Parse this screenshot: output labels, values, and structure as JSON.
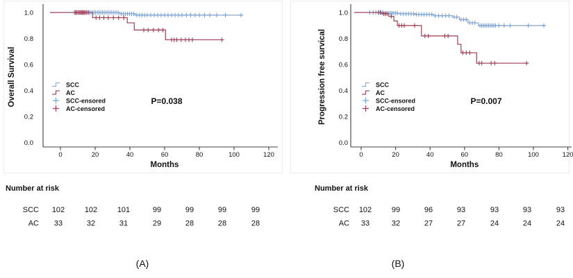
{
  "figure_captions": {
    "a": "(A)",
    "b": "(B)"
  },
  "colors": {
    "scc_line": "#96adcd",
    "scc_mark": "#7ba3d4",
    "ac_line": "#a34e60",
    "ac_mark": "#9d4153",
    "axis": "#3f3f3f",
    "panel_border": "#ececec"
  },
  "chart_data": [
    {
      "id": "A",
      "type": "line",
      "subtype": "kaplan_meier_step",
      "panel_label": "(A)",
      "xlabel": "Months",
      "ylabel": "Overall Survival",
      "p_value": "P=0.038",
      "xticks": [
        0,
        20,
        40,
        60,
        80,
        100,
        120
      ],
      "yticks": [
        "1.0",
        "0.8",
        "0.6",
        "0.4",
        "0.2",
        "0.0"
      ],
      "xlim": [
        0,
        120
      ],
      "ylim": [
        0.0,
        1.0
      ],
      "grid": false,
      "legend_position": "left-middle",
      "legend_entries": [
        {
          "label": "SCC",
          "glyph": "step",
          "series": "SCC"
        },
        {
          "label": "AC",
          "glyph": "step",
          "series": "AC"
        },
        {
          "label": "SCC-ensored",
          "glyph": "censor",
          "series": "SCC"
        },
        {
          "label": "AC-censored",
          "glyph": "censor",
          "series": "AC"
        }
      ],
      "series": [
        {
          "name": "SCC",
          "steps": [
            [
              0,
              1.0
            ],
            [
              34,
              0.99
            ],
            [
              43,
              0.98
            ]
          ],
          "end_month": 105,
          "censors": [
            [
              8,
              1
            ],
            [
              8.7,
              1
            ],
            [
              9.4,
              1
            ],
            [
              10.1,
              1
            ],
            [
              10.8,
              1
            ],
            [
              11.5,
              1
            ],
            [
              12.2,
              1
            ],
            [
              12.9,
              1
            ],
            [
              13.6,
              1
            ],
            [
              14.3,
              1
            ],
            [
              15,
              1
            ],
            [
              15.8,
              1
            ],
            [
              16.6,
              1
            ],
            [
              17.5,
              1
            ],
            [
              18.4,
              1
            ],
            [
              19.3,
              1
            ],
            [
              20.2,
              1
            ],
            [
              21.2,
              1
            ],
            [
              22.2,
              1
            ],
            [
              23.2,
              1
            ],
            [
              24.2,
              1
            ],
            [
              25.2,
              1
            ],
            [
              26.3,
              1
            ],
            [
              27.4,
              1
            ],
            [
              28.5,
              1
            ],
            [
              29.6,
              1
            ],
            [
              30.8,
              1
            ],
            [
              32,
              1
            ],
            [
              33.2,
              1
            ],
            [
              35,
              0.99
            ],
            [
              36.2,
              0.99
            ],
            [
              37.4,
              0.99
            ],
            [
              38.6,
              0.99
            ],
            [
              39.8,
              0.99
            ],
            [
              41,
              0.99
            ],
            [
              42.2,
              0.99
            ],
            [
              44,
              0.98
            ],
            [
              45.5,
              0.98
            ],
            [
              47,
              0.98
            ],
            [
              48.5,
              0.98
            ],
            [
              50,
              0.98
            ],
            [
              52,
              0.98
            ],
            [
              54,
              0.98
            ],
            [
              56,
              0.98
            ],
            [
              58,
              0.98
            ],
            [
              60,
              0.98
            ],
            [
              62,
              0.98
            ],
            [
              64,
              0.98
            ],
            [
              66,
              0.98
            ],
            [
              68,
              0.98
            ],
            [
              70,
              0.98
            ],
            [
              72.5,
              0.98
            ],
            [
              75,
              0.98
            ],
            [
              77.5,
              0.98
            ],
            [
              80,
              0.98
            ],
            [
              83,
              0.98
            ],
            [
              86,
              0.98
            ],
            [
              90,
              0.98
            ],
            [
              95,
              0.98
            ],
            [
              104,
              0.98
            ]
          ]
        },
        {
          "name": "AC",
          "steps": [
            [
              0,
              1.0
            ],
            [
              18.5,
              0.96
            ],
            [
              38.5,
              0.92
            ],
            [
              42.5,
              0.865
            ],
            [
              60.5,
              0.79
            ]
          ],
          "end_month": 93,
          "censors": [
            [
              8.5,
              1
            ],
            [
              9.3,
              1
            ],
            [
              10.1,
              1
            ],
            [
              10.9,
              1
            ],
            [
              11.7,
              1
            ],
            [
              12.5,
              1
            ],
            [
              13.3,
              1
            ],
            [
              14.1,
              1
            ],
            [
              15,
              1
            ],
            [
              16,
              1
            ],
            [
              20.5,
              0.96
            ],
            [
              22.5,
              0.96
            ],
            [
              25,
              0.96
            ],
            [
              27.5,
              0.96
            ],
            [
              30.5,
              0.96
            ],
            [
              33.5,
              0.96
            ],
            [
              36.5,
              0.96
            ],
            [
              48,
              0.865
            ],
            [
              50.5,
              0.865
            ],
            [
              53.5,
              0.865
            ],
            [
              56.5,
              0.865
            ],
            [
              59,
              0.865
            ],
            [
              64,
              0.79
            ],
            [
              65.5,
              0.79
            ],
            [
              67,
              0.79
            ],
            [
              69.5,
              0.79
            ],
            [
              72,
              0.79
            ],
            [
              74,
              0.79
            ],
            [
              76,
              0.79
            ],
            [
              93,
              0.79
            ]
          ]
        }
      ],
      "number_at_risk": {
        "heading": "Number at risk",
        "rows": [
          {
            "label": "SCC",
            "values": [
              102,
              102,
              101,
              99,
              99,
              99,
              99
            ]
          },
          {
            "label": "AC",
            "values": [
              33,
              32,
              31,
              29,
              28,
              28,
              28
            ]
          }
        ]
      }
    },
    {
      "id": "B",
      "type": "line",
      "subtype": "kaplan_meier_step",
      "panel_label": "(B)",
      "xlabel": "Months",
      "ylabel": "Progression free survical",
      "p_value": "P=0.007",
      "xticks": [
        0,
        20,
        40,
        60,
        80,
        100,
        120
      ],
      "yticks": [
        "1.0",
        "0.8",
        "0.6",
        "0.4",
        "0.2",
        "0.0"
      ],
      "xlim": [
        0,
        120
      ],
      "ylim": [
        0.0,
        1.0
      ],
      "grid": false,
      "legend_position": "left-middle",
      "legend_entries": [
        {
          "label": "SCC",
          "glyph": "step",
          "series": "SCC"
        },
        {
          "label": "AC",
          "glyph": "step",
          "series": "AC"
        },
        {
          "label": "SCC-ensored",
          "glyph": "censor",
          "series": "SCC"
        },
        {
          "label": "AC-censored",
          "glyph": "censor",
          "series": "AC"
        }
      ],
      "series": [
        {
          "name": "SCC",
          "steps": [
            [
              0,
              1.0
            ],
            [
              13,
              0.995
            ],
            [
              22,
              0.99
            ],
            [
              31,
              0.985
            ],
            [
              42,
              0.975
            ],
            [
              53,
              0.965
            ],
            [
              57,
              0.945
            ],
            [
              62,
              0.92
            ],
            [
              68,
              0.9
            ]
          ],
          "end_month": 107,
          "censors": [
            [
              5,
              1
            ],
            [
              7,
              1
            ],
            [
              8.5,
              1
            ],
            [
              10,
              1
            ],
            [
              11.5,
              1
            ],
            [
              12.5,
              1
            ],
            [
              14,
              0.995
            ],
            [
              15,
              0.995
            ],
            [
              16,
              0.995
            ],
            [
              17,
              0.995
            ],
            [
              18,
              0.995
            ],
            [
              19,
              0.995
            ],
            [
              20,
              0.995
            ],
            [
              21,
              0.995
            ],
            [
              23,
              0.99
            ],
            [
              24.5,
              0.99
            ],
            [
              26,
              0.99
            ],
            [
              27.5,
              0.99
            ],
            [
              29,
              0.99
            ],
            [
              30.5,
              0.99
            ],
            [
              32,
              0.985
            ],
            [
              33.5,
              0.985
            ],
            [
              35,
              0.985
            ],
            [
              36.5,
              0.985
            ],
            [
              38,
              0.985
            ],
            [
              39.5,
              0.985
            ],
            [
              41,
              0.985
            ],
            [
              43,
              0.975
            ],
            [
              45,
              0.975
            ],
            [
              47,
              0.975
            ],
            [
              49,
              0.975
            ],
            [
              51,
              0.975
            ],
            [
              54,
              0.965
            ],
            [
              55.5,
              0.965
            ],
            [
              58,
              0.945
            ],
            [
              59.5,
              0.945
            ],
            [
              61,
              0.945
            ],
            [
              63,
              0.92
            ],
            [
              64.5,
              0.92
            ],
            [
              66,
              0.92
            ],
            [
              69,
              0.9
            ],
            [
              70,
              0.9
            ],
            [
              71,
              0.9
            ],
            [
              72,
              0.9
            ],
            [
              73,
              0.9
            ],
            [
              74,
              0.9
            ],
            [
              75,
              0.9
            ],
            [
              76,
              0.9
            ],
            [
              77,
              0.9
            ],
            [
              78,
              0.9
            ],
            [
              80,
              0.9
            ],
            [
              83,
              0.9
            ],
            [
              86.5,
              0.9
            ],
            [
              97,
              0.9
            ],
            [
              106,
              0.9
            ]
          ]
        },
        {
          "name": "AC",
          "steps": [
            [
              0,
              1.0
            ],
            [
              12,
              0.99
            ],
            [
              16,
              0.97
            ],
            [
              19,
              0.935
            ],
            [
              21,
              0.9
            ],
            [
              35,
              0.82
            ],
            [
              56,
              0.755
            ],
            [
              58,
              0.69
            ],
            [
              67,
              0.61
            ]
          ],
          "end_month": 97,
          "censors": [
            [
              10,
              1
            ],
            [
              11,
              1
            ],
            [
              13,
              0.99
            ],
            [
              14,
              0.99
            ],
            [
              15,
              0.99
            ],
            [
              17.5,
              0.97
            ],
            [
              22,
              0.9
            ],
            [
              23.5,
              0.9
            ],
            [
              25,
              0.9
            ],
            [
              31,
              0.9
            ],
            [
              37,
              0.82
            ],
            [
              39,
              0.82
            ],
            [
              48.5,
              0.82
            ],
            [
              50.5,
              0.82
            ],
            [
              59,
              0.69
            ],
            [
              61,
              0.69
            ],
            [
              63,
              0.69
            ],
            [
              68.5,
              0.61
            ],
            [
              70,
              0.61
            ],
            [
              75.5,
              0.61
            ],
            [
              77.5,
              0.61
            ],
            [
              96,
              0.61
            ]
          ]
        }
      ],
      "number_at_risk": {
        "heading": "Number at risk",
        "rows": [
          {
            "label": "SCC",
            "values": [
              102,
              99,
              96,
              93,
              93,
              93,
              93
            ]
          },
          {
            "label": "AC",
            "values": [
              33,
              32,
              27,
              27,
              24,
              24,
              24
            ]
          }
        ]
      }
    }
  ]
}
